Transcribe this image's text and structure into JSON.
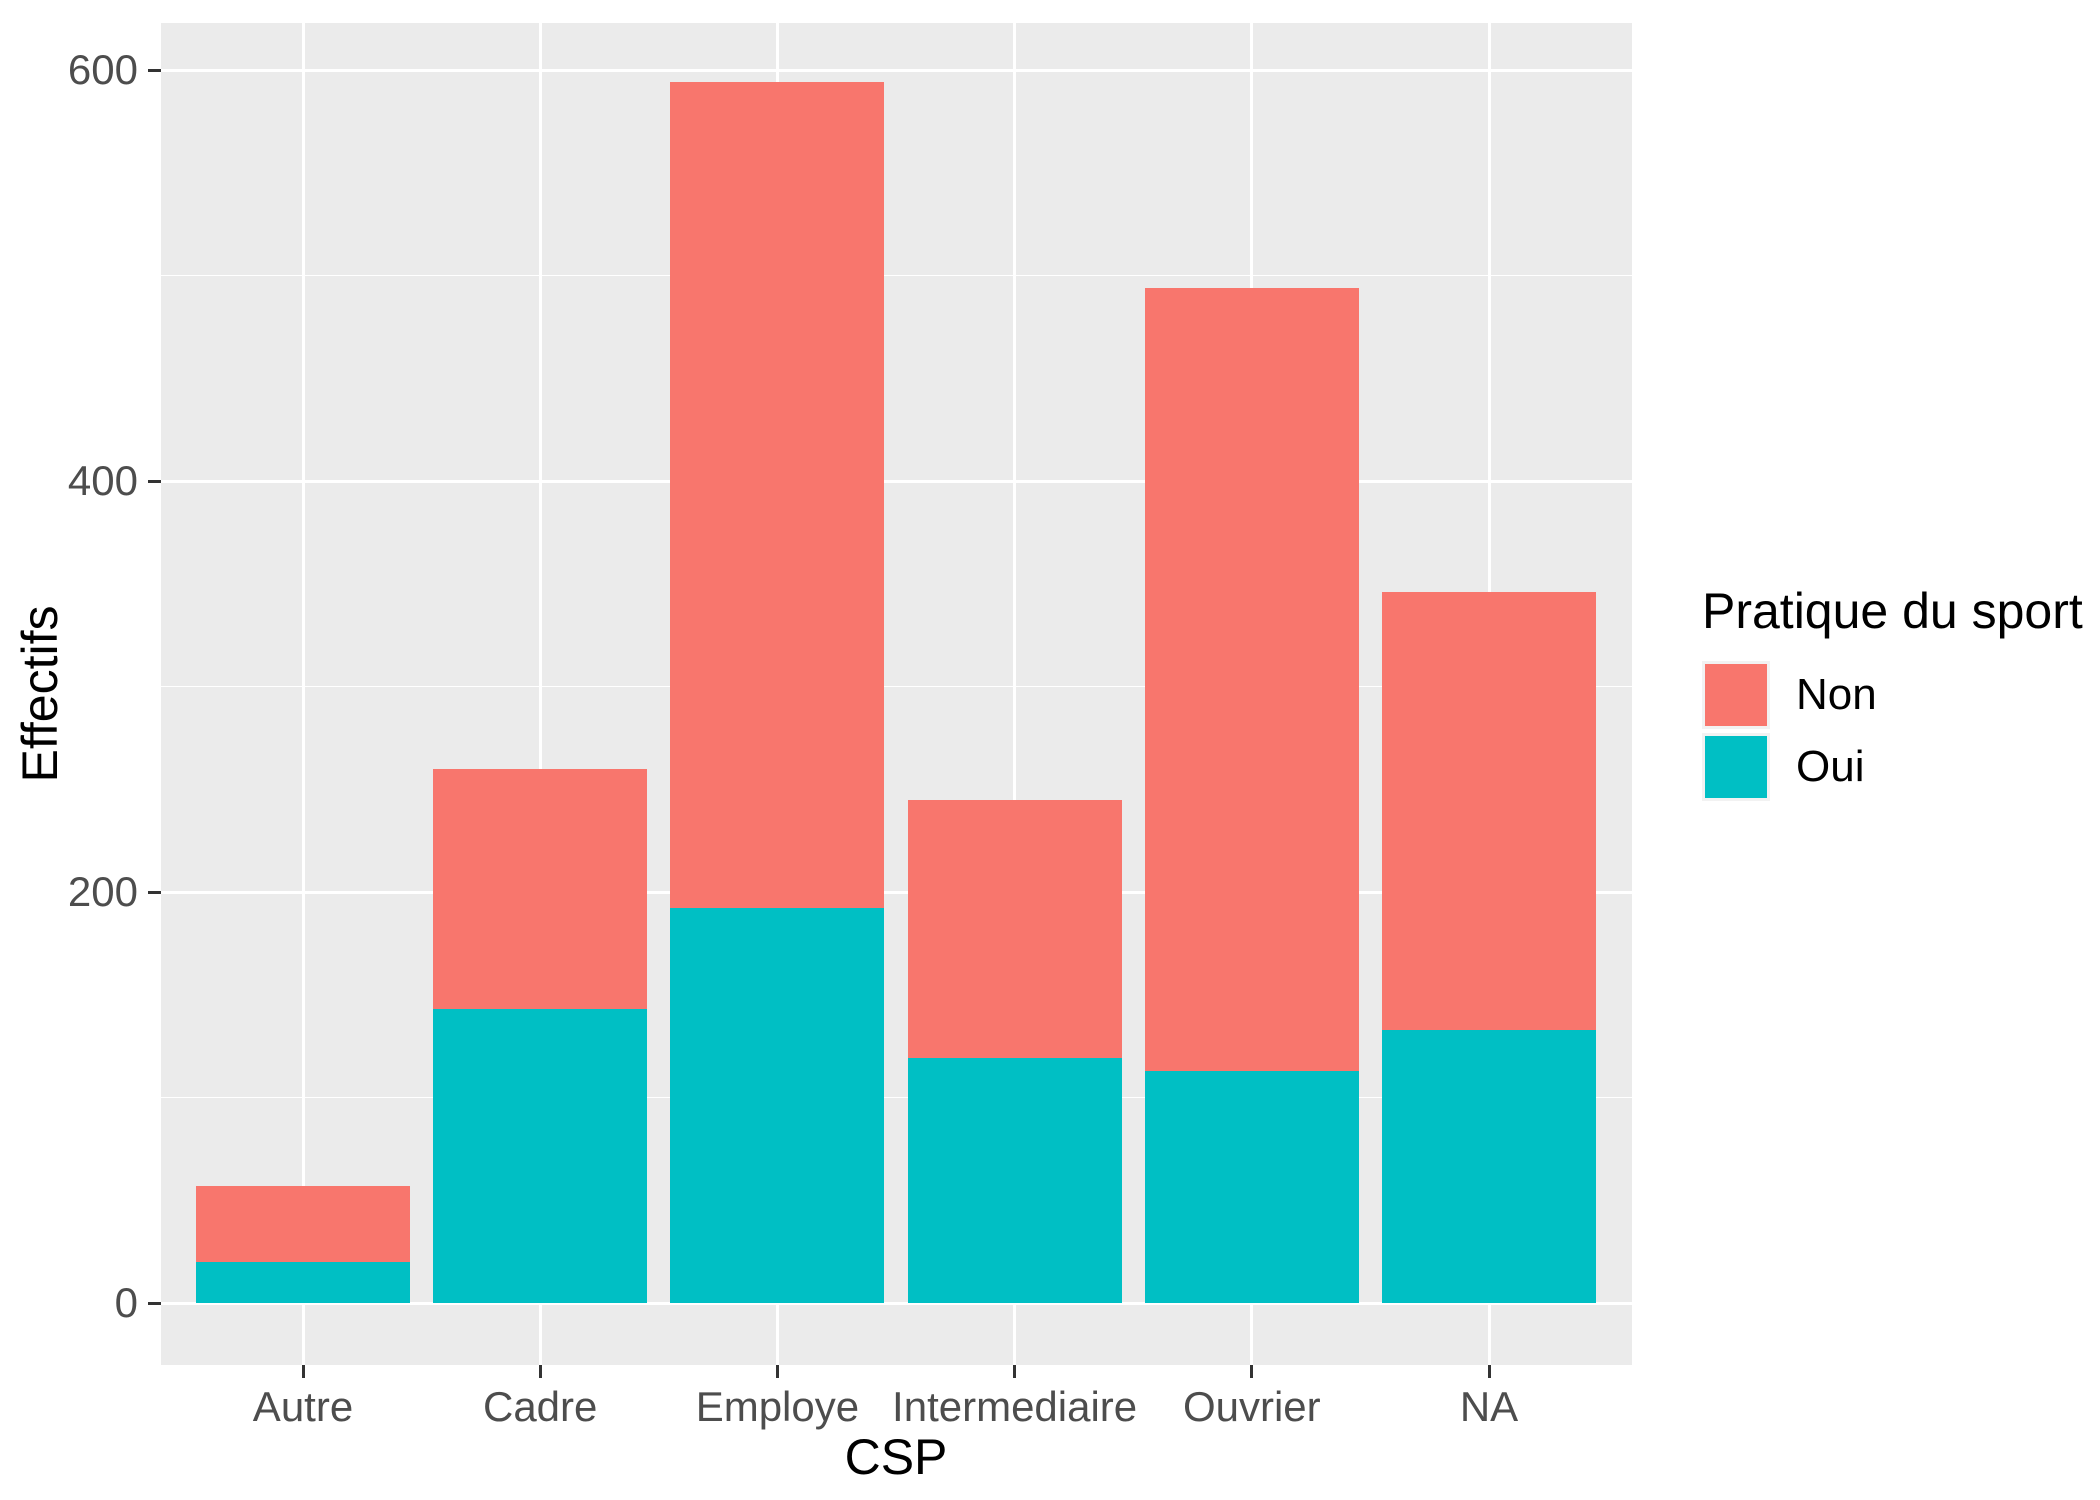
{
  "chart_data": {
    "type": "bar",
    "stacked": true,
    "title": "",
    "xlabel": "CSP",
    "ylabel": "Effectifs",
    "categories": [
      "Autre",
      "Cadre",
      "Employe",
      "Intermediaire",
      "Ouvrier",
      "NA"
    ],
    "series": [
      {
        "name": "Oui",
        "color": "#00BFC4",
        "values": [
          20,
          143,
          192,
          119,
          113,
          133
        ]
      },
      {
        "name": "Non",
        "color": "#F8766D",
        "values": [
          37,
          117,
          402,
          126,
          381,
          213
        ]
      }
    ],
    "stack_totals": [
      57,
      260,
      594,
      245,
      494,
      346
    ],
    "y_ticks": [
      0,
      200,
      400,
      600
    ],
    "y_tick_labels": [
      "0",
      "200",
      "400",
      "600"
    ],
    "y_minor_ticks": [
      100,
      300,
      500
    ],
    "ylim": [
      -30,
      623
    ],
    "grid": "white major and minor horizontal lines, white vertical lines at category centers, on gray panel",
    "legend_position": "right",
    "legend": {
      "title": "Pratique du sport",
      "entries": [
        {
          "label": "Non",
          "color": "#F8766D"
        },
        {
          "label": "Oui",
          "color": "#00BFC4"
        }
      ]
    }
  },
  "colors": {
    "panel_background": "#EBEBEB",
    "gridline": "#FFFFFF",
    "tick_label_text": "#4D4D4D",
    "axis_title_text": "#000000",
    "tick_mark": "#333333",
    "series_non": "#F8766D",
    "series_oui": "#00BFC4",
    "page_background": "#FFFFFF"
  }
}
